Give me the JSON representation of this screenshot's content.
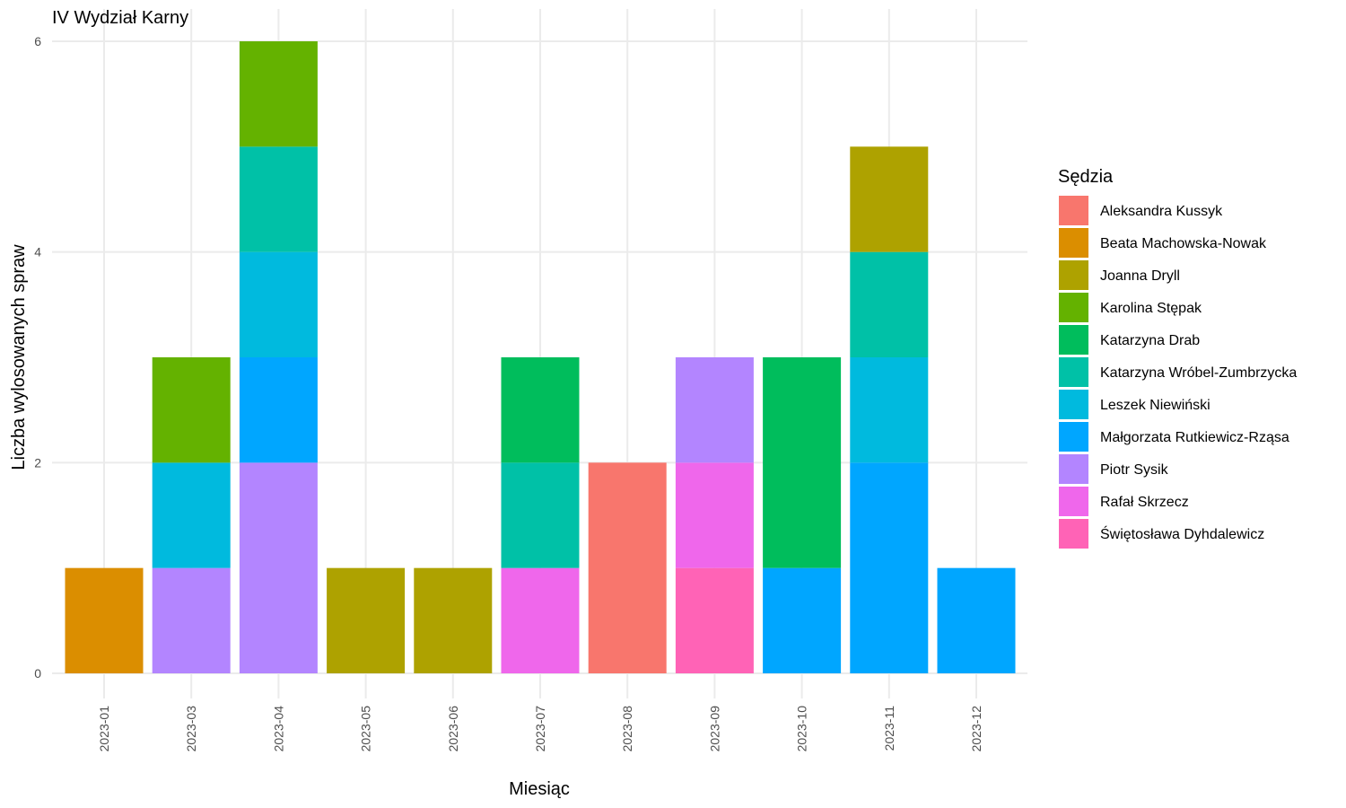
{
  "chart_data": {
    "type": "bar",
    "stacked": true,
    "title": "IV Wydział Karny",
    "xlabel": "Miesiąc",
    "ylabel": "Liczba wylosowanych spraw",
    "ylim": [
      0,
      6
    ],
    "yticks": [
      0,
      2,
      4,
      6
    ],
    "grid": true,
    "legend_position": "right",
    "legend_title": "Sędzia",
    "categories": [
      "2023-01",
      "2023-03",
      "2023-04",
      "2023-05",
      "2023-06",
      "2023-07",
      "2023-08",
      "2023-09",
      "2023-10",
      "2023-11",
      "2023-12"
    ],
    "series": [
      {
        "name": "Aleksandra Kussyk",
        "color": "#F8766D",
        "values": [
          0,
          0,
          0,
          0,
          0,
          0,
          2,
          0,
          0,
          0,
          0
        ]
      },
      {
        "name": "Beata Machowska-Nowak",
        "color": "#DB8E00",
        "values": [
          1,
          0,
          0,
          0,
          0,
          0,
          0,
          0,
          0,
          0,
          0
        ]
      },
      {
        "name": "Joanna Dryll",
        "color": "#AEA200",
        "values": [
          0,
          0,
          0,
          1,
          1,
          0,
          0,
          0,
          0,
          1,
          0
        ]
      },
      {
        "name": "Karolina Stępak",
        "color": "#64B200",
        "values": [
          0,
          1,
          1,
          0,
          0,
          0,
          0,
          0,
          0,
          0,
          0
        ]
      },
      {
        "name": "Katarzyna Drab",
        "color": "#00BD5C",
        "values": [
          0,
          0,
          0,
          0,
          0,
          1,
          0,
          0,
          2,
          0,
          0
        ]
      },
      {
        "name": "Katarzyna Wróbel-Zumbrzycka",
        "color": "#00C1A7",
        "values": [
          0,
          0,
          1,
          0,
          0,
          1,
          0,
          0,
          0,
          1,
          0
        ]
      },
      {
        "name": "Leszek Niewiński",
        "color": "#00BADE",
        "values": [
          0,
          1,
          1,
          0,
          0,
          0,
          0,
          0,
          0,
          1,
          0
        ]
      },
      {
        "name": "Małgorzata Rutkiewicz-Rząsa",
        "color": "#00A6FF",
        "values": [
          0,
          0,
          1,
          0,
          0,
          0,
          0,
          0,
          1,
          2,
          1
        ]
      },
      {
        "name": "Piotr Sysik",
        "color": "#B385FF",
        "values": [
          0,
          1,
          2,
          0,
          0,
          0,
          0,
          1,
          0,
          0,
          0
        ]
      },
      {
        "name": "Rafał Skrzecz",
        "color": "#EF67EB",
        "values": [
          0,
          0,
          0,
          0,
          0,
          1,
          0,
          1,
          0,
          0,
          0
        ]
      },
      {
        "name": "Świętosława Dyhdalewicz",
        "color": "#FF63B6",
        "values": [
          0,
          0,
          0,
          0,
          0,
          0,
          0,
          1,
          0,
          0,
          0
        ]
      }
    ]
  }
}
